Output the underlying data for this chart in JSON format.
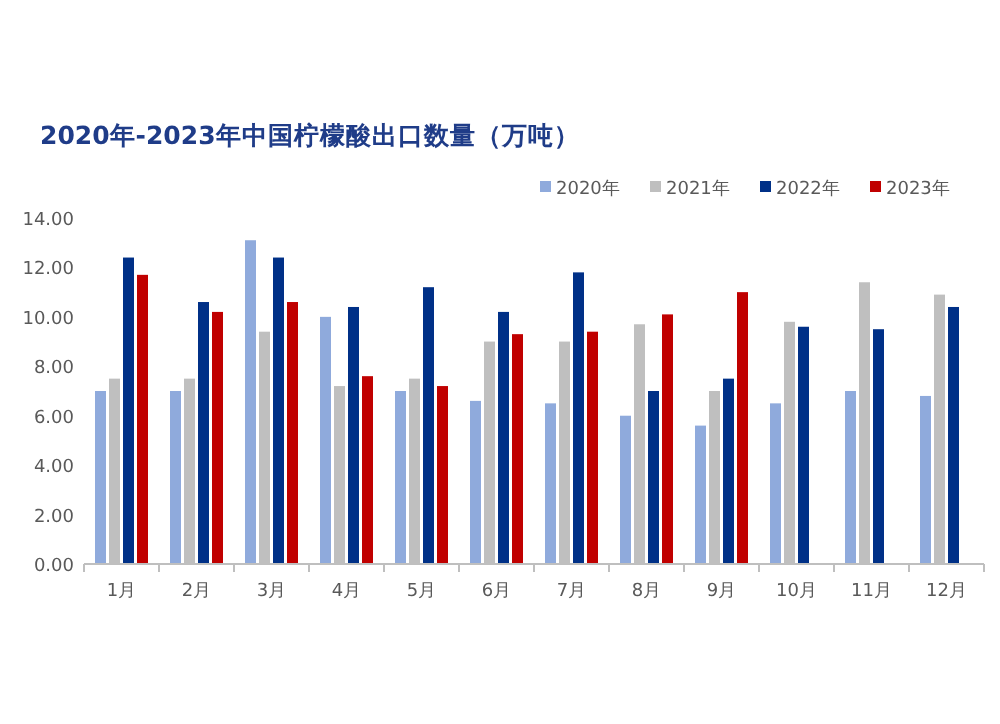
{
  "chart_data": {
    "type": "bar",
    "title": "2020年-2023年中国柠檬酸出口数量（万吨）",
    "categories": [
      "1月",
      "2月",
      "3月",
      "4月",
      "5月",
      "6月",
      "7月",
      "8月",
      "9月",
      "10月",
      "11月",
      "12月"
    ],
    "series": [
      {
        "name": "2020年",
        "color": "#8faadc",
        "values": [
          7.0,
          7.0,
          13.1,
          10.0,
          7.0,
          6.6,
          6.5,
          6.0,
          5.6,
          6.5,
          7.0,
          6.8
        ]
      },
      {
        "name": "2021年",
        "color": "#bfbfbf",
        "values": [
          7.5,
          7.5,
          9.4,
          7.2,
          7.5,
          9.0,
          9.0,
          9.7,
          7.0,
          9.8,
          11.4,
          10.9
        ]
      },
      {
        "name": "2022年",
        "color": "#003087",
        "values": [
          12.4,
          10.6,
          12.4,
          10.4,
          11.2,
          10.2,
          11.8,
          7.0,
          7.5,
          9.6,
          9.5,
          10.4
        ]
      },
      {
        "name": "2023年",
        "color": "#c00000",
        "values": [
          11.7,
          10.2,
          10.6,
          7.6,
          7.2,
          9.3,
          9.4,
          10.1,
          11.0,
          null,
          null,
          null
        ]
      }
    ],
    "ylim": [
      0,
      14
    ],
    "yticks": [
      {
        "value": 0,
        "label": "0.00"
      },
      {
        "value": 2,
        "label": "2.00"
      },
      {
        "value": 4,
        "label": "4.00"
      },
      {
        "value": 6,
        "label": "6.00"
      },
      {
        "value": 8,
        "label": "8.00"
      },
      {
        "value": 10,
        "label": "10.00"
      },
      {
        "value": 12,
        "label": "12.00"
      },
      {
        "value": 14,
        "label": "14.00"
      }
    ],
    "grid": false,
    "legend": "top right"
  }
}
